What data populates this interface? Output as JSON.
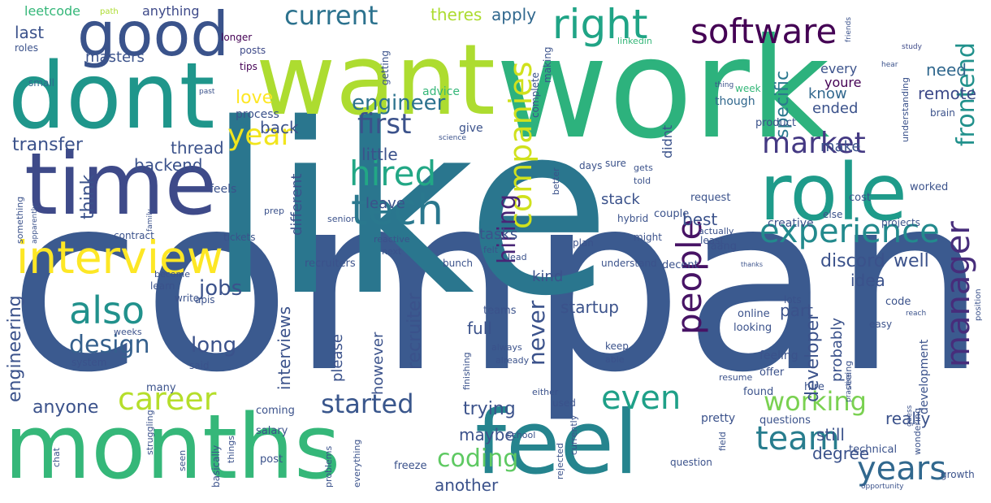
{
  "words": [
    {
      "text": "company",
      "color": "#3b5a8f"
    },
    {
      "text": "like",
      "color": "#2a768e"
    },
    {
      "text": "work",
      "color": "#2db27d"
    },
    {
      "text": "want",
      "color": "#addc30"
    },
    {
      "text": "dont",
      "color": "#1f968b"
    },
    {
      "text": "time",
      "color": "#3e4a89"
    },
    {
      "text": "months",
      "color": "#35b779"
    },
    {
      "text": "feel",
      "color": "#25848e"
    },
    {
      "text": "role",
      "color": "#1e9b8a"
    },
    {
      "text": "good",
      "color": "#3a538b"
    },
    {
      "text": "interview",
      "color": "#fde725"
    },
    {
      "text": "tech",
      "color": "#2a788e"
    },
    {
      "text": "right",
      "color": "#20a486"
    },
    {
      "text": "software",
      "color": "#440154"
    },
    {
      "text": "experience",
      "color": "#238a8d"
    },
    {
      "text": "hired",
      "color": "#22a785"
    },
    {
      "text": "companies",
      "color": "#d0e11c"
    },
    {
      "text": "market",
      "color": "#443983"
    },
    {
      "text": "people",
      "color": "#471365"
    },
    {
      "text": "years",
      "color": "#31688e"
    },
    {
      "text": "also",
      "color": "#21918c"
    },
    {
      "text": "career",
      "color": "#b5de2b"
    },
    {
      "text": "team",
      "color": "#287d8e"
    },
    {
      "text": "even",
      "color": "#1fa088"
    },
    {
      "text": "manager",
      "color": "#472d7b"
    },
    {
      "text": "working",
      "color": "#7ad151"
    },
    {
      "text": "frontend",
      "color": "#21918c"
    },
    {
      "text": "year",
      "color": "#f1e51d"
    },
    {
      "text": "current",
      "color": "#2c728e"
    },
    {
      "text": "first",
      "color": "#3b528b"
    },
    {
      "text": "started",
      "color": "#39568c"
    },
    {
      "text": "hiring",
      "color": "#482576"
    },
    {
      "text": "coding",
      "color": "#5ec962"
    },
    {
      "text": "design",
      "color": "#35608d"
    },
    {
      "text": "engineer",
      "color": "#2c728e"
    },
    {
      "text": "leetcode",
      "color": "#35b779"
    },
    {
      "text": "path",
      "color": "#addc30"
    },
    {
      "text": "anything",
      "color": "#3e4a89"
    },
    {
      "text": "theres",
      "color": "#addc30"
    },
    {
      "text": "apply",
      "color": "#31688e"
    },
    {
      "text": "need",
      "color": "#31688e"
    },
    {
      "text": "remote",
      "color": "#3e4a89"
    },
    {
      "text": "last",
      "color": "#3b528b"
    },
    {
      "text": "masters",
      "color": "#3b528b"
    },
    {
      "text": "roles",
      "color": "#3b528b"
    },
    {
      "text": "small",
      "color": "#31688e"
    },
    {
      "text": "longer",
      "color": "#440154"
    },
    {
      "text": "posts",
      "color": "#3e4a89"
    },
    {
      "text": "tips",
      "color": "#440154"
    },
    {
      "text": "linkedin",
      "color": "#35b779"
    },
    {
      "text": "friends",
      "color": "#3b528b"
    },
    {
      "text": "study",
      "color": "#3e4a89"
    },
    {
      "text": "getting",
      "color": "#3b528b"
    },
    {
      "text": "advice",
      "color": "#35b779"
    },
    {
      "text": "hear",
      "color": "#3b528b"
    },
    {
      "text": "every",
      "color": "#3b528b"
    },
    {
      "text": "youre",
      "color": "#440154"
    },
    {
      "text": "past",
      "color": "#3b528b"
    },
    {
      "text": "love",
      "color": "#fde725"
    },
    {
      "text": "process",
      "color": "#3b528b"
    },
    {
      "text": "ended",
      "color": "#3b528b"
    },
    {
      "text": "know",
      "color": "#31688e"
    },
    {
      "text": "specific",
      "color": "#2a788e"
    },
    {
      "text": "thing",
      "color": "#3b528b"
    },
    {
      "text": "week",
      "color": "#35b779"
    },
    {
      "text": "though",
      "color": "#31688e"
    },
    {
      "text": "brain",
      "color": "#3b528b"
    },
    {
      "text": "complete",
      "color": "#3b528b"
    },
    {
      "text": "making",
      "color": "#3b528b"
    },
    {
      "text": "back",
      "color": "#3b528b"
    },
    {
      "text": "product",
      "color": "#3b528b"
    },
    {
      "text": "thread",
      "color": "#3b528b"
    },
    {
      "text": "transfer",
      "color": "#3b528b"
    },
    {
      "text": "little",
      "color": "#3b528b"
    },
    {
      "text": "give",
      "color": "#3b528b"
    },
    {
      "text": "science",
      "color": "#3b528b"
    },
    {
      "text": "didnt",
      "color": "#3b528b"
    },
    {
      "text": "make",
      "color": "#3b528b"
    },
    {
      "text": "understanding",
      "color": "#3b528b"
    },
    {
      "text": "backend",
      "color": "#3b528b"
    },
    {
      "text": "days",
      "color": "#3b528b"
    },
    {
      "text": "sure",
      "color": "#3b528b"
    },
    {
      "text": "gets",
      "color": "#3b528b"
    },
    {
      "text": "told",
      "color": "#3b528b"
    },
    {
      "text": "worked",
      "color": "#3b528b"
    },
    {
      "text": "feels",
      "color": "#3b528b"
    },
    {
      "text": "better",
      "color": "#3b528b"
    },
    {
      "text": "think",
      "color": "#3b528b"
    },
    {
      "text": "stack",
      "color": "#3b528b"
    },
    {
      "text": "request",
      "color": "#3b528b"
    },
    {
      "text": "cost",
      "color": "#3b528b"
    },
    {
      "text": "something",
      "color": "#3b528b"
    },
    {
      "text": "family",
      "color": "#3b528b"
    },
    {
      "text": "senior",
      "color": "#3b528b"
    },
    {
      "text": "different",
      "color": "#3b528b"
    },
    {
      "text": "leave",
      "color": "#3b528b"
    },
    {
      "text": "couple",
      "color": "#3b528b"
    },
    {
      "text": "else",
      "color": "#3b528b"
    },
    {
      "text": "best",
      "color": "#3b528b"
    },
    {
      "text": "hybrid",
      "color": "#3b528b"
    },
    {
      "text": "creative",
      "color": "#3b528b"
    },
    {
      "text": "projects",
      "color": "#3b528b"
    },
    {
      "text": "apparently",
      "color": "#3b528b"
    },
    {
      "text": "prep",
      "color": "#3b528b"
    },
    {
      "text": "actually",
      "color": "#3b528b"
    },
    {
      "text": "might",
      "color": "#3b528b"
    },
    {
      "text": "least",
      "color": "#3b528b"
    },
    {
      "text": "contract",
      "color": "#3b528b"
    },
    {
      "text": "tickets",
      "color": "#3b528b"
    },
    {
      "text": "reactive",
      "color": "#3b528b"
    },
    {
      "text": "tasks",
      "color": "#3b528b"
    },
    {
      "text": "plan",
      "color": "#3b528b"
    },
    {
      "text": "next",
      "color": "#3b528b"
    },
    {
      "text": "felt",
      "color": "#3b528b"
    },
    {
      "text": "lead",
      "color": "#3b528b"
    },
    {
      "text": "faang",
      "color": "#3b528b"
    },
    {
      "text": "discord",
      "color": "#3b528b"
    },
    {
      "text": "well",
      "color": "#3b528b"
    },
    {
      "text": "recruiters",
      "color": "#3b528b"
    },
    {
      "text": "bunch",
      "color": "#3b528b"
    },
    {
      "text": "understand",
      "color": "#3b528b"
    },
    {
      "text": "decent",
      "color": "#3b528b"
    },
    {
      "text": "thanks",
      "color": "#3b528b"
    },
    {
      "text": "idea",
      "color": "#3b528b"
    },
    {
      "text": "position",
      "color": "#3b528b"
    },
    {
      "text": "become",
      "color": "#3b528b"
    },
    {
      "text": "learn",
      "color": "#3b528b"
    },
    {
      "text": "kind",
      "color": "#3b528b"
    },
    {
      "text": "engineering",
      "color": "#3b528b"
    },
    {
      "text": "interviews",
      "color": "#3b528b"
    },
    {
      "text": "jobs",
      "color": "#3b528b"
    },
    {
      "text": "write",
      "color": "#3b528b"
    },
    {
      "text": "apis",
      "color": "#3b528b"
    },
    {
      "text": "recruiter",
      "color": "#3b528b"
    },
    {
      "text": "startup",
      "color": "#3b528b"
    },
    {
      "text": "developer",
      "color": "#3b528b"
    },
    {
      "text": "lots",
      "color": "#3b528b"
    },
    {
      "text": "online",
      "color": "#3b528b"
    },
    {
      "text": "code",
      "color": "#3b528b"
    },
    {
      "text": "reach",
      "color": "#3b528b"
    },
    {
      "text": "weeks",
      "color": "#3b528b"
    },
    {
      "text": "teams",
      "color": "#3b528b"
    },
    {
      "text": "part",
      "color": "#3b528b"
    },
    {
      "text": "looking",
      "color": "#3b528b"
    },
    {
      "text": "easy",
      "color": "#3b528b"
    },
    {
      "text": "system",
      "color": "#3b528b"
    },
    {
      "text": "always",
      "color": "#3b528b"
    },
    {
      "text": "keep",
      "color": "#3b528b"
    },
    {
      "text": "able",
      "color": "#3b528b"
    },
    {
      "text": "full",
      "color": "#3b528b"
    },
    {
      "text": "already",
      "color": "#3b528b"
    },
    {
      "text": "never",
      "color": "#3b528b"
    },
    {
      "text": "long",
      "color": "#3b528b"
    },
    {
      "text": "said",
      "color": "#3b528b"
    },
    {
      "text": "finishing",
      "color": "#3b528b"
    },
    {
      "text": "probably",
      "color": "#3b528b"
    },
    {
      "text": "feeling",
      "color": "#3b528b"
    },
    {
      "text": "however",
      "color": "#3b528b"
    },
    {
      "text": "please",
      "color": "#3b528b"
    },
    {
      "text": "offer",
      "color": "#3b528b"
    },
    {
      "text": "seeing",
      "color": "#3b528b"
    },
    {
      "text": "development",
      "color": "#3b528b"
    },
    {
      "text": "many",
      "color": "#3b528b"
    },
    {
      "text": "resume",
      "color": "#3b528b"
    },
    {
      "text": "practice",
      "color": "#3b528b"
    },
    {
      "text": "either",
      "color": "#3b528b"
    },
    {
      "text": "used",
      "color": "#3b528b"
    },
    {
      "text": "found",
      "color": "#3b528b"
    },
    {
      "text": "hire",
      "color": "#3b528b"
    },
    {
      "text": "anyone",
      "color": "#3b528b"
    },
    {
      "text": "really",
      "color": "#3b528b"
    },
    {
      "text": "coming",
      "color": "#3b528b"
    },
    {
      "text": "trying",
      "color": "#3b528b"
    },
    {
      "text": "pretty",
      "color": "#3b528b"
    },
    {
      "text": "guess",
      "color": "#3b528b"
    },
    {
      "text": "questions",
      "color": "#3b528b"
    },
    {
      "text": "struggling",
      "color": "#3b528b"
    },
    {
      "text": "maybe",
      "color": "#3b528b"
    },
    {
      "text": "school",
      "color": "#3b528b"
    },
    {
      "text": "salary",
      "color": "#3b528b"
    },
    {
      "text": "field",
      "color": "#3b528b"
    },
    {
      "text": "wondering",
      "color": "#3b528b"
    },
    {
      "text": "still",
      "color": "#3b528b"
    },
    {
      "text": "technical",
      "color": "#3b528b"
    },
    {
      "text": "chat",
      "color": "#3b528b"
    },
    {
      "text": "seen",
      "color": "#3b528b"
    },
    {
      "text": "basically",
      "color": "#3b528b"
    },
    {
      "text": "things",
      "color": "#3b528b"
    },
    {
      "text": "post",
      "color": "#3b528b"
    },
    {
      "text": "problems",
      "color": "#3b528b"
    },
    {
      "text": "everything",
      "color": "#3b528b"
    },
    {
      "text": "freeze",
      "color": "#3b528b"
    },
    {
      "text": "rejected",
      "color": "#3b528b"
    },
    {
      "text": "currently",
      "color": "#3b528b"
    },
    {
      "text": "another",
      "color": "#3b528b"
    },
    {
      "text": "degree",
      "color": "#3b528b"
    },
    {
      "text": "question",
      "color": "#3b528b"
    },
    {
      "text": "opportunity",
      "color": "#3b528b"
    },
    {
      "text": "growth",
      "color": "#3b528b"
    }
  ]
}
